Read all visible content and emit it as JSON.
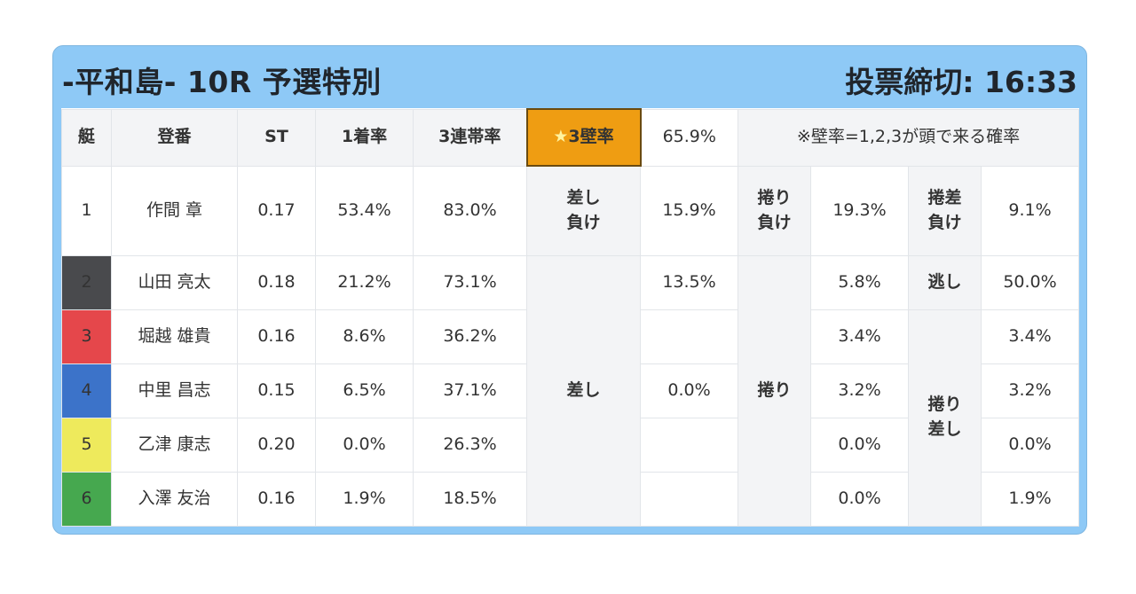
{
  "header": {
    "race_title": "-平和島- 10R 予選特別",
    "deadline": "投票締切: 16:33"
  },
  "columns": {
    "waku": "艇",
    "name": "登番",
    "st": "ST",
    "win_rate": "1着率",
    "top3_rate": "3連帯率",
    "wall_label_star": "★",
    "wall_label": "3壁率",
    "wall_value": "65.9%",
    "note": "※壁率=1,2,3が頭で来る確率"
  },
  "colors": {
    "card_bg": "#8ec9f6",
    "star_bg": "#ef9d12",
    "boat1": "#ffffff",
    "boat2": "#494a4d",
    "boat3": "#e5474b",
    "boat4": "#3c73c9",
    "boat5": "#eeea5c",
    "boat6": "#46a84f"
  },
  "rows": [
    {
      "waku": "1",
      "name": "作間 章",
      "st": "0.17",
      "win": "53.4%",
      "top3": "83.0%"
    },
    {
      "waku": "2",
      "name": "山田 亮太",
      "st": "0.18",
      "win": "21.2%",
      "top3": "73.1%"
    },
    {
      "waku": "3",
      "name": "堀越 雄貴",
      "st": "0.16",
      "win": "8.6%",
      "top3": "36.2%"
    },
    {
      "waku": "4",
      "name": "中里 昌志",
      "st": "0.15",
      "win": "6.5%",
      "top3": "37.1%"
    },
    {
      "waku": "5",
      "name": "乙津 康志",
      "st": "0.20",
      "win": "0.0%",
      "top3": "26.3%"
    },
    {
      "waku": "6",
      "name": "入澤 友治",
      "st": "0.16",
      "win": "1.9%",
      "top3": "18.5%"
    }
  ],
  "kimarite": {
    "sashimake_1": "差し",
    "sashimake_2": "負け",
    "sashimake_val": "15.9%",
    "makurimake_1": "捲り",
    "makurimake_2": "負け",
    "makurimake_val": "19.3%",
    "makurisashimake_1": "捲差",
    "makurisashimake_2": "負け",
    "makurisashimake_val": "9.1%",
    "sashi": "差し",
    "sashi_vals": [
      "13.5%",
      "",
      "0.0%",
      "",
      ""
    ],
    "makuri": "捲り",
    "makuri_vals": [
      "5.8%",
      "3.4%",
      "3.2%",
      "0.0%",
      "0.0%"
    ],
    "nige": "逃し",
    "nige_val": "50.0%",
    "makurisashi_1": "捲り",
    "makurisashi_2": "差し",
    "makurisashi_vals": [
      "3.4%",
      "3.2%",
      "0.0%",
      "1.9%"
    ]
  }
}
